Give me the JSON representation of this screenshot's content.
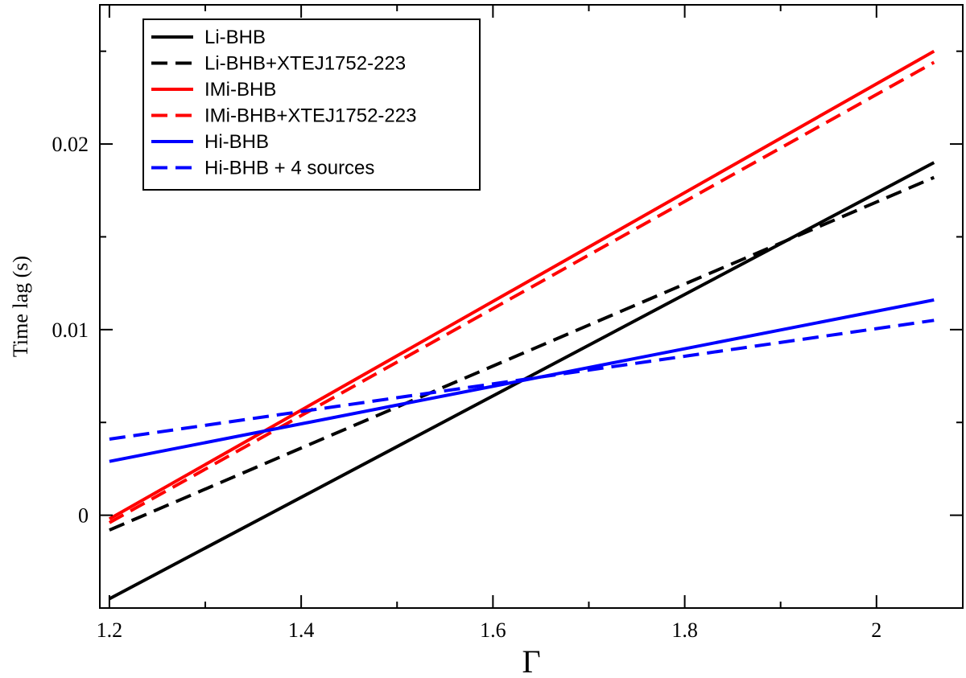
{
  "chart_data": {
    "type": "line",
    "xlabel": "Γ",
    "ylabel": "Time lag (s)",
    "xlim": [
      1.19,
      2.09
    ],
    "ylim": [
      -0.005,
      0.0275
    ],
    "xticks": [
      1.2,
      1.4,
      1.6,
      1.8,
      2.0
    ],
    "xtick_labels": [
      "1.2",
      "1.4",
      "1.6",
      "1.8",
      "2"
    ],
    "yticks": [
      0,
      0.01,
      0.02
    ],
    "ytick_labels": [
      "0",
      "0.01",
      "0.02"
    ],
    "grid": false,
    "legend_position": "top-left",
    "series": [
      {
        "name": "Li-BHB",
        "color": "#000000",
        "style": "solid",
        "x": [
          1.2,
          2.06
        ],
        "y": [
          -0.0045,
          0.019
        ]
      },
      {
        "name": "Li-BHB+XTEJ1752-223",
        "color": "#000000",
        "style": "dashed",
        "x": [
          1.2,
          2.06
        ],
        "y": [
          -0.0008,
          0.0182
        ]
      },
      {
        "name": "IMi-BHB",
        "color": "#ff0000",
        "style": "solid",
        "x": [
          1.2,
          2.06
        ],
        "y": [
          -0.0002,
          0.025
        ]
      },
      {
        "name": "IMi-BHB+XTEJ1752-223",
        "color": "#ff0000",
        "style": "dashed",
        "x": [
          1.2,
          2.06
        ],
        "y": [
          -0.0004,
          0.0244
        ]
      },
      {
        "name": "Hi-BHB",
        "color": "#0000ff",
        "style": "solid",
        "x": [
          1.2,
          2.06
        ],
        "y": [
          0.0029,
          0.0116
        ]
      },
      {
        "name": "Hi-BHB + 4 sources",
        "color": "#0000ff",
        "style": "dashed",
        "x": [
          1.2,
          2.06
        ],
        "y": [
          0.0041,
          0.0105
        ]
      }
    ]
  }
}
